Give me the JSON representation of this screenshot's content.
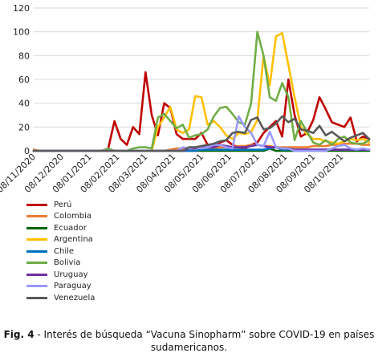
{
  "chart_data": {
    "type": "line",
    "ylim": [
      0,
      120
    ],
    "y_ticks": [
      0,
      20,
      40,
      60,
      80,
      100,
      120
    ],
    "x_tick_labels": [
      "08/11/2020",
      "08/12/2020",
      "08/01/2021",
      "08/02/2021",
      "08/03/2021",
      "08/04/2021",
      "08/05/2021",
      "08/06/2021",
      "08/07/2021",
      "08/08/2021",
      "08/09/2021",
      "08/10/2021"
    ],
    "grid": "horizontal",
    "legend_placement": "bottom-left",
    "series": [
      {
        "name": "Perú",
        "color": "#C00000",
        "values": [
          0,
          0,
          0,
          0,
          0,
          0,
          0,
          0,
          0,
          0,
          0,
          0,
          2,
          25,
          10,
          5,
          20,
          14,
          66,
          30,
          13,
          40,
          36,
          14,
          10,
          10,
          10,
          15,
          5,
          3,
          7,
          9,
          5,
          3,
          2,
          5,
          7,
          15,
          20,
          25,
          12,
          60,
          30,
          12,
          15,
          26,
          45,
          35,
          24,
          22,
          20,
          28,
          8,
          12,
          10
        ]
      },
      {
        "name": "Colombia",
        "color": "#ED7D31",
        "values": [
          1,
          0,
          0,
          0,
          0,
          0,
          0,
          0,
          0,
          0,
          0,
          0,
          0,
          0,
          0,
          0,
          0,
          0,
          0,
          0,
          0,
          0,
          1,
          2,
          2,
          2,
          3,
          2,
          3,
          2,
          3,
          3,
          3,
          4,
          4,
          5,
          5,
          4,
          4,
          3,
          3,
          3,
          3,
          3,
          3,
          4,
          4,
          4,
          5,
          5,
          6,
          6,
          6,
          5,
          5
        ]
      },
      {
        "name": "Ecuador",
        "color": "#006400",
        "values": [
          0,
          0,
          0,
          0,
          0,
          0,
          0,
          0,
          0,
          0,
          0,
          0,
          0,
          0,
          0,
          0,
          0,
          0,
          0,
          0,
          0,
          0,
          0,
          0,
          0,
          0,
          0,
          0,
          0,
          0,
          0,
          0,
          0,
          0,
          0,
          0,
          0,
          0,
          2,
          0,
          0,
          0,
          0,
          0,
          0,
          0,
          0,
          0,
          0,
          0,
          0,
          0,
          0,
          0,
          0
        ]
      },
      {
        "name": "Argentina",
        "color": "#FFC000",
        "values": [
          0,
          0,
          0,
          0,
          0,
          0,
          0,
          0,
          0,
          0,
          0,
          0,
          0,
          0,
          0,
          0,
          0,
          0,
          0,
          0,
          20,
          28,
          37,
          18,
          15,
          18,
          46,
          45,
          22,
          25,
          20,
          13,
          10,
          15,
          14,
          16,
          26,
          80,
          55,
          96,
          99,
          72,
          45,
          20,
          14,
          10,
          10,
          8,
          7,
          6,
          8,
          10,
          9,
          10,
          7
        ]
      },
      {
        "name": "Chile",
        "color": "#0070C0",
        "values": [
          0,
          0,
          0,
          0,
          0,
          0,
          0,
          0,
          0,
          0,
          0,
          0,
          0,
          0,
          0,
          0,
          0,
          0,
          0,
          0,
          0,
          0,
          0,
          0,
          0,
          0,
          0,
          1,
          1,
          1,
          1,
          1,
          1,
          1,
          1,
          1,
          1,
          1,
          2,
          3,
          1,
          1,
          1,
          1,
          1,
          1,
          1,
          1,
          1,
          1,
          1,
          1,
          1,
          1,
          1
        ]
      },
      {
        "name": "Bolivia",
        "color": "#70AD47",
        "values": [
          0,
          0,
          0,
          0,
          0,
          0,
          0,
          0,
          0,
          0,
          0,
          0,
          2,
          0,
          0,
          0,
          2,
          3,
          3,
          2,
          28,
          31,
          25,
          19,
          22,
          11,
          13,
          14,
          18,
          29,
          36,
          37,
          31,
          24,
          22,
          40,
          100,
          80,
          45,
          42,
          57,
          45,
          9,
          25,
          16,
          7,
          5,
          9,
          5,
          10,
          12,
          7,
          6,
          6,
          9
        ]
      },
      {
        "name": "Uruguay",
        "color": "#7030A0",
        "values": [
          0,
          0,
          0,
          0,
          0,
          0,
          0,
          0,
          0,
          0,
          0,
          0,
          0,
          0,
          0,
          0,
          0,
          0,
          0,
          0,
          0,
          0,
          0,
          0,
          0,
          2,
          2,
          3,
          3,
          3,
          5,
          4,
          3,
          3,
          3,
          4,
          5,
          4,
          3,
          3,
          2,
          2,
          1,
          1,
          1,
          1,
          1,
          1,
          1,
          1,
          1,
          1,
          1,
          1,
          1
        ]
      },
      {
        "name": "Paraguay",
        "color": "#9999FF",
        "values": [
          0,
          0,
          0,
          0,
          0,
          0,
          0,
          0,
          0,
          0,
          0,
          0,
          0,
          0,
          0,
          0,
          0,
          0,
          0,
          0,
          0,
          0,
          0,
          0,
          3,
          2,
          3,
          2,
          3,
          5,
          5,
          3,
          2,
          29,
          20,
          15,
          5,
          4,
          16,
          3,
          2,
          2,
          0,
          0,
          0,
          0,
          0,
          0,
          2,
          4,
          5,
          2,
          1,
          2,
          1
        ]
      },
      {
        "name": "Venezuela",
        "color": "#595959",
        "values": [
          0,
          0,
          0,
          0,
          0,
          0,
          0,
          0,
          0,
          0,
          0,
          0,
          0,
          0,
          0,
          0,
          0,
          0,
          0,
          0,
          0,
          0,
          0,
          0,
          0,
          3,
          3,
          4,
          5,
          6,
          8,
          9,
          15,
          16,
          15,
          26,
          28,
          18,
          19,
          23,
          29,
          24,
          27,
          18,
          17,
          15,
          21,
          13,
          16,
          12,
          8,
          11,
          13,
          15,
          10
        ]
      }
    ]
  },
  "caption": {
    "label": "Fig. 4",
    "text": " - Interés de búsqueda “Vacuna Sinopharm” sobre COVID-19 en países sudamericanos."
  }
}
